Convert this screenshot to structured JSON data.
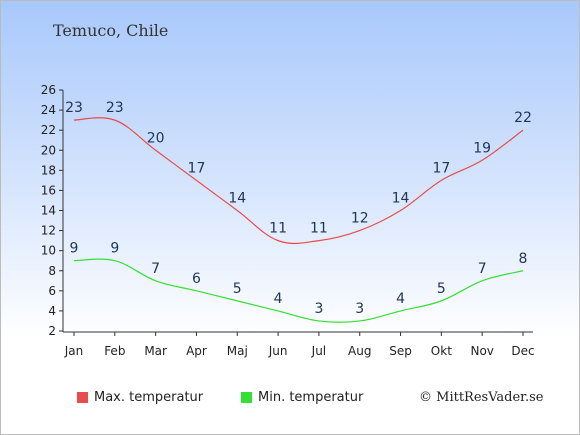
{
  "title": "Temuco, Chile",
  "credit": "© MittResVader.se",
  "chart_data": {
    "type": "line",
    "title": "Temuco, Chile",
    "categories": [
      "Jan",
      "Feb",
      "Mar",
      "Apr",
      "Maj",
      "Jun",
      "Jul",
      "Aug",
      "Sep",
      "Okt",
      "Nov",
      "Dec"
    ],
    "ylim": [
      2,
      26
    ],
    "yticks": [
      2,
      4,
      6,
      8,
      10,
      12,
      14,
      16,
      18,
      20,
      22,
      24,
      26
    ],
    "grid": false,
    "legend_position": "bottom",
    "series": [
      {
        "name": "Max. temperatur",
        "color": "#e84c4c",
        "values": [
          23,
          23,
          20,
          17,
          14,
          11,
          11,
          12,
          14,
          17,
          19,
          22
        ]
      },
      {
        "name": "Min. temperatur",
        "color": "#33e033",
        "values": [
          9,
          9,
          7,
          6,
          5,
          4,
          3,
          3,
          4,
          5,
          7,
          8
        ]
      }
    ]
  }
}
